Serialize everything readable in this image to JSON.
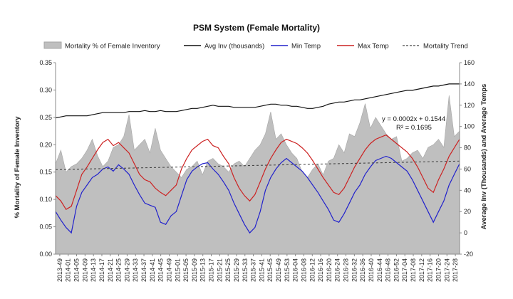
{
  "chart_data": {
    "type": "area",
    "title": "PSM System (Female  Mortality)",
    "ylabel_left": "% Mortality of Female Inventory",
    "ylabel_right": "Average Inv (Thousands) and Average Temps",
    "xlabel": "",
    "y_left_lim": [
      0,
      0.35
    ],
    "y_left_ticks": [
      "0.00",
      "0.05",
      "0.10",
      "0.15",
      "0.20",
      "0.25",
      "0.30",
      "0.35"
    ],
    "y_right_lim": [
      -20,
      160
    ],
    "y_right_ticks": [
      "-20",
      "0",
      "20",
      "40",
      "60",
      "80",
      "100",
      "120",
      "140",
      "160"
    ],
    "grid": false,
    "legend_position": "top",
    "x_tick_labels": [
      "2013-49",
      "2014-01",
      "2014-05",
      "2014-09",
      "2014-13",
      "2014-17",
      "2014-21",
      "2014-25",
      "2014-29",
      "2014-33",
      "2014-37",
      "2014-41",
      "2014-45",
      "2014-49",
      "2015-01",
      "2015-05",
      "2015-09",
      "2015-13",
      "2015-17",
      "2015-21",
      "2015-25",
      "2015-29",
      "2015-33",
      "2015-37",
      "2015-41",
      "2015-45",
      "2015-49",
      "2015-53",
      "2016-04",
      "2016-08",
      "2016-12",
      "2016-16",
      "2016-20",
      "2016-24",
      "2016-28",
      "2016-32",
      "2016-36",
      "2016-40",
      "2016-44",
      "2016-48",
      "2016-52",
      "2017-04",
      "2017-08",
      "2017-12",
      "2017-16",
      "2017-20",
      "2017-24",
      "2017-28"
    ],
    "series": [
      {
        "name": "Mortality % of Female Inventory",
        "kind": "area",
        "axis": "left",
        "color": "#bfbfbf",
        "values": [
          0.165,
          0.19,
          0.15,
          0.16,
          0.165,
          0.175,
          0.19,
          0.21,
          0.18,
          0.16,
          0.17,
          0.195,
          0.2,
          0.215,
          0.255,
          0.19,
          0.2,
          0.21,
          0.185,
          0.23,
          0.19,
          0.175,
          0.16,
          0.15,
          0.14,
          0.155,
          0.16,
          0.17,
          0.145,
          0.17,
          0.175,
          0.165,
          0.16,
          0.15,
          0.165,
          0.17,
          0.16,
          0.175,
          0.19,
          0.2,
          0.22,
          0.26,
          0.21,
          0.22,
          0.2,
          0.185,
          0.175,
          0.15,
          0.14,
          0.155,
          0.165,
          0.145,
          0.17,
          0.175,
          0.2,
          0.185,
          0.22,
          0.215,
          0.24,
          0.275,
          0.23,
          0.25,
          0.235,
          0.22,
          0.21,
          0.215,
          0.17,
          0.175,
          0.185,
          0.19,
          0.175,
          0.195,
          0.2,
          0.21,
          0.195,
          0.29,
          0.215,
          0.225
        ]
      },
      {
        "name": "Avg Inv (thousands)",
        "kind": "line",
        "axis": "right",
        "color": "#111111",
        "values": [
          108,
          109,
          110,
          110,
          110,
          110,
          110,
          111,
          112,
          113,
          113,
          113,
          113,
          113,
          114,
          114,
          114,
          115,
          114,
          114,
          115,
          114,
          114,
          114,
          115,
          116,
          117,
          117,
          118,
          119,
          120,
          119,
          119,
          119,
          118,
          118,
          118,
          118,
          118,
          119,
          120,
          121,
          121,
          120,
          120,
          119,
          119,
          118,
          117,
          117,
          118,
          119,
          121,
          122,
          123,
          123,
          124,
          125,
          125,
          126,
          127,
          128,
          129,
          130,
          131,
          132,
          133,
          134,
          134,
          135,
          136,
          137,
          138,
          138,
          139,
          140,
          140,
          140
        ]
      },
      {
        "name": "Min Temp",
        "kind": "line",
        "axis": "right",
        "color": "#2222cc",
        "values": [
          20,
          12,
          5,
          0,
          25,
          38,
          45,
          52,
          55,
          60,
          62,
          58,
          64,
          60,
          55,
          45,
          36,
          28,
          26,
          24,
          10,
          8,
          16,
          20,
          35,
          50,
          58,
          62,
          65,
          66,
          60,
          55,
          48,
          40,
          28,
          18,
          8,
          0,
          5,
          20,
          40,
          52,
          60,
          66,
          70,
          66,
          62,
          58,
          52,
          45,
          38,
          30,
          22,
          12,
          10,
          18,
          28,
          38,
          45,
          55,
          62,
          68,
          70,
          72,
          70,
          66,
          62,
          58,
          50,
          40,
          30,
          20,
          10,
          20,
          30,
          45,
          55,
          65
        ]
      },
      {
        "name": "Max Temp",
        "kind": "line",
        "axis": "right",
        "color": "#cc2222",
        "values": [
          35,
          30,
          22,
          25,
          40,
          55,
          62,
          70,
          78,
          85,
          88,
          82,
          85,
          80,
          75,
          65,
          55,
          50,
          48,
          42,
          38,
          35,
          40,
          45,
          60,
          70,
          78,
          82,
          86,
          88,
          82,
          80,
          72,
          65,
          52,
          42,
          35,
          30,
          36,
          48,
          60,
          70,
          78,
          85,
          88,
          86,
          84,
          80,
          75,
          68,
          60,
          52,
          45,
          38,
          36,
          42,
          52,
          62,
          70,
          78,
          84,
          88,
          90,
          92,
          88,
          84,
          80,
          76,
          70,
          62,
          52,
          42,
          38,
          50,
          60,
          72,
          80,
          88
        ]
      },
      {
        "name": "Mortality Trend",
        "kind": "trend",
        "axis": "left",
        "color": "#444444",
        "equation": "y = 0.0002x + 0.1544",
        "r2": "R² = 0.1695",
        "slope": 0.0002,
        "intercept": 0.1544
      }
    ]
  }
}
